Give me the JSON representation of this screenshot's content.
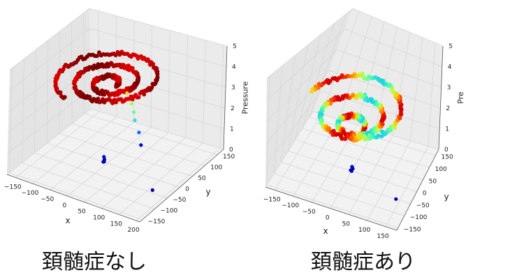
{
  "chart_data": [
    {
      "type": "scatter3d",
      "caption": "頚髄症なし",
      "xlabel": "x",
      "ylabel": "y",
      "zlabel": "Pressure",
      "xticks": [
        -150,
        -100,
        -50,
        0,
        50,
        100,
        150,
        200
      ],
      "yticks": [
        150,
        100,
        50,
        0,
        -50,
        -100,
        -150
      ],
      "zticks": [
        0,
        1,
        2,
        3,
        4,
        5
      ],
      "xlim": [
        -175,
        210
      ],
      "ylim": [
        -160,
        175
      ],
      "zlim": [
        0,
        5
      ],
      "colormap": [
        "#0000a8",
        "#0000ff",
        "#00b4ff",
        "#4dffb0",
        "#b4ff4d",
        "#ffd000",
        "#ff7000",
        "#e00000",
        "#7a0000"
      ],
      "series": [
        {
          "shape": "spiral",
          "turns": 2.7,
          "r_start": 15,
          "r_end": 135,
          "center": [
            0,
            10
          ],
          "pressure": [
            3.7,
            3.95
          ],
          "color_scale": [
            0.88,
            1.0
          ]
        },
        {
          "shape": "tail",
          "points": [
            [
              15,
              55,
              2.9
            ],
            [
              25,
              60,
              2.4
            ],
            [
              30,
              62,
              2.0
            ],
            [
              32,
              64,
              1.6
            ],
            [
              40,
              70,
              1.0
            ],
            [
              45,
              72,
              0.4
            ]
          ]
        },
        {
          "shape": "dots",
          "points": [
            [
              -10,
              0,
              0.25
            ],
            [
              -10,
              2,
              0.1
            ],
            [
              -12,
              0,
              0.0
            ],
            [
              -8,
              -2,
              0.05
            ],
            [
              160,
              -40,
              0.0
            ]
          ]
        }
      ]
    },
    {
      "type": "scatter3d",
      "caption": "頚髄症あり",
      "xlabel": "x",
      "ylabel": "y",
      "zlabel": "Pre",
      "xticks": [
        -150,
        -100,
        -50,
        0,
        50,
        100,
        150
      ],
      "yticks": [
        150,
        100,
        50,
        0,
        -50,
        -100,
        -150
      ],
      "zticks": [
        0,
        1,
        2,
        3,
        4,
        5
      ],
      "xlim": [
        -175,
        180
      ],
      "ylim": [
        -160,
        175
      ],
      "zlim": [
        0,
        5
      ],
      "colormap": [
        "#0000a8",
        "#0000ff",
        "#00b4ff",
        "#4dffb0",
        "#b4ff4d",
        "#ffd000",
        "#ff7000",
        "#e00000",
        "#7a0000"
      ],
      "series": [
        {
          "shape": "spiral",
          "turns": 2.5,
          "r_start": 20,
          "r_end": 140,
          "center": [
            0,
            0
          ],
          "pressure": [
            2.0,
            3.0
          ],
          "color_scale": [
            0.3,
            0.9
          ],
          "noise": 5
        },
        {
          "shape": "dots",
          "points": [
            [
              0,
              0,
              0.0
            ],
            [
              2,
              2,
              0.1
            ],
            [
              0,
              0,
              0.2
            ],
            [
              -2,
              -2,
              0.05
            ],
            [
              140,
              -50,
              0.0
            ]
          ]
        }
      ]
    }
  ]
}
